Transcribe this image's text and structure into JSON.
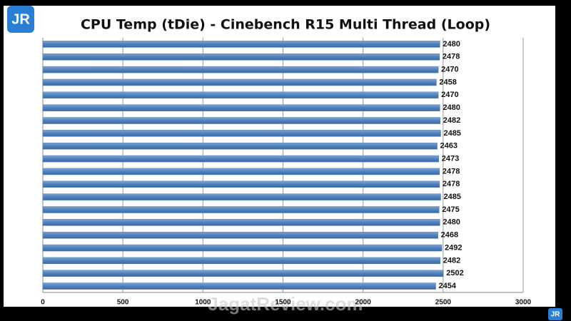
{
  "chart_data": {
    "type": "bar",
    "orientation": "horizontal",
    "title": "CPU Temp (tDie) - Cinebench R15 Multi Thread (Loop)",
    "categories": [
      null,
      null,
      null,
      null,
      null,
      null,
      null,
      null,
      null,
      null,
      null,
      null,
      null,
      null,
      null,
      null,
      null,
      null,
      null,
      null
    ],
    "values": [
      2480,
      2478,
      2470,
      2458,
      2470,
      2480,
      2482,
      2485,
      2463,
      2473,
      2478,
      2478,
      2485,
      2475,
      2480,
      2468,
      2492,
      2482,
      2502,
      2454
    ],
    "color": "#4f81bd",
    "xlim": [
      0,
      3000
    ],
    "xticks": [
      0,
      500,
      1000,
      1500,
      2000,
      2500,
      3000
    ],
    "grid": true,
    "logo": "JR",
    "watermark": "JagatReview.com"
  }
}
